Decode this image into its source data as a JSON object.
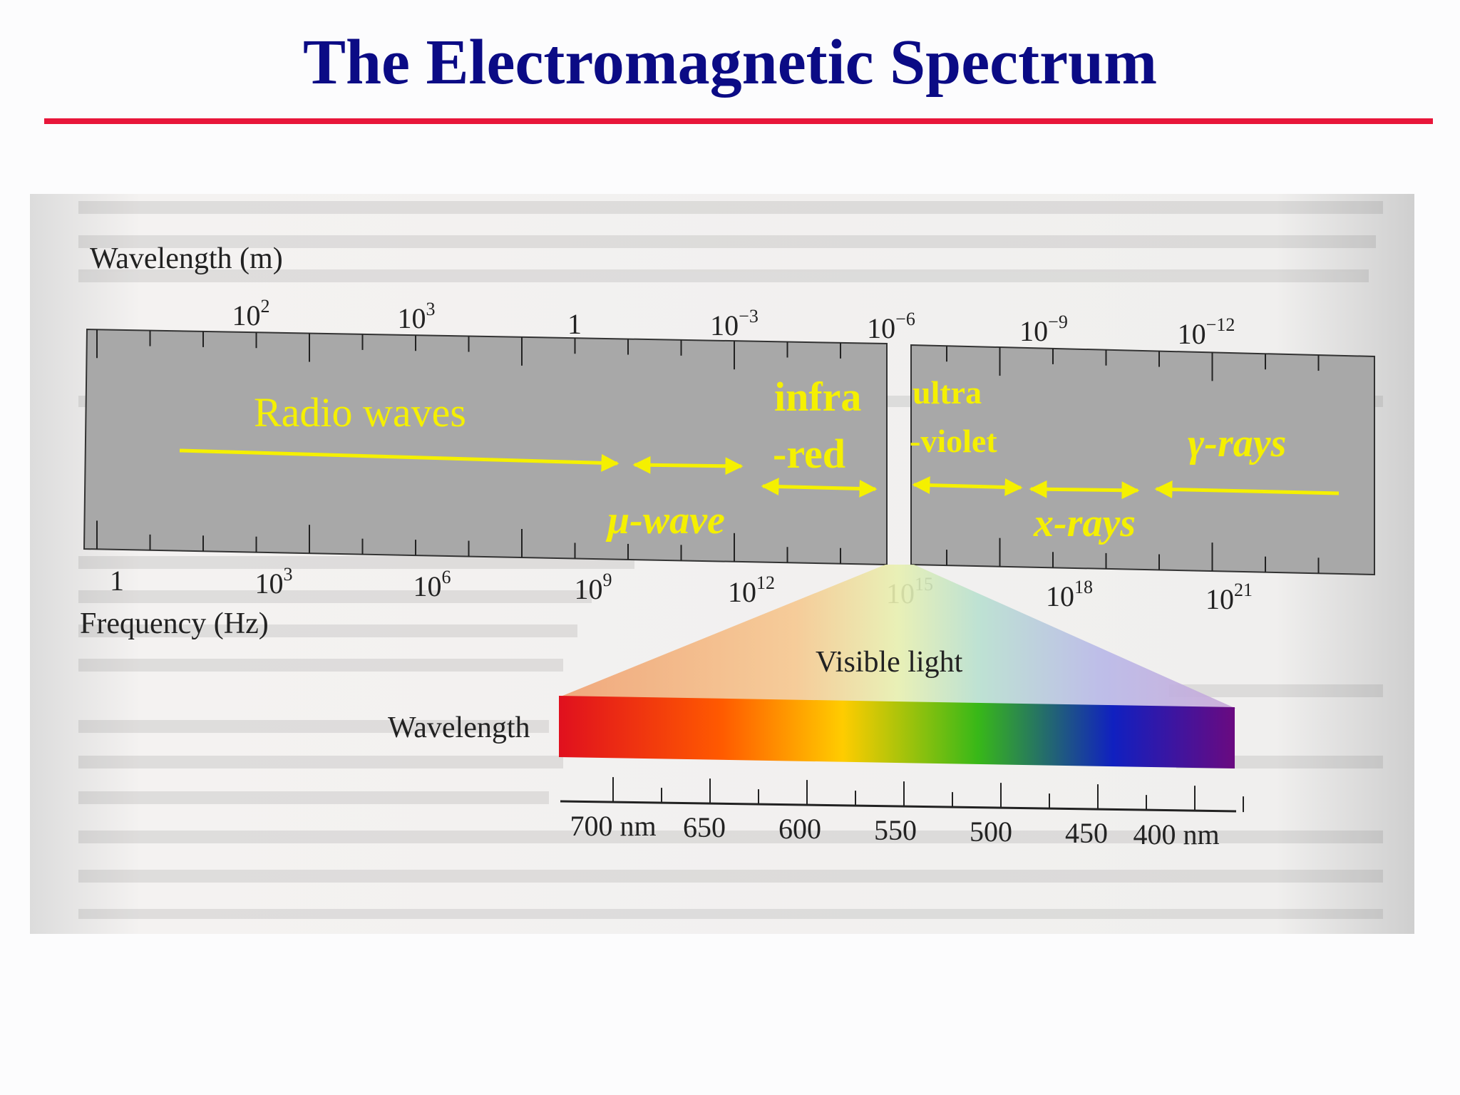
{
  "slide": {
    "title": "The Electromagnetic Spectrum",
    "title_color": "#0b0b85",
    "rule_color": "#e8163a"
  },
  "figure": {
    "wavelength_axis_label": "Wavelength (m)",
    "wavelength_ticks": [
      {
        "base": "10",
        "exp": "2"
      },
      {
        "base": "10",
        "exp": "3"
      },
      {
        "base": "1",
        "exp": ""
      },
      {
        "base": "10",
        "exp": "−3"
      },
      {
        "base": "10",
        "exp": "−6"
      },
      {
        "base": "10",
        "exp": "−9"
      },
      {
        "base": "10",
        "exp": "−12"
      }
    ],
    "frequency_axis_label": "Frequency (Hz)",
    "frequency_ticks": [
      {
        "base": "1",
        "exp": ""
      },
      {
        "base": "10",
        "exp": "3"
      },
      {
        "base": "10",
        "exp": "6"
      },
      {
        "base": "10",
        "exp": "9"
      },
      {
        "base": "10",
        "exp": "12"
      },
      {
        "base": "10",
        "exp": "15"
      },
      {
        "base": "10",
        "exp": "18"
      },
      {
        "base": "10",
        "exp": "21"
      }
    ],
    "bands": {
      "radio": "Radio waves",
      "microwave": "μ-wave",
      "infrared_line1": "infra",
      "infrared_line2": "-red",
      "ultraviolet_line1": "ultra",
      "ultraviolet_line2": "-violet",
      "xrays": "x-rays",
      "gamma": "γ-rays"
    },
    "band_label_color": "#f5f000",
    "visible_light_label": "Visible light",
    "visible_wavelength_label": "Wavelength",
    "visible_ticks": [
      "700 nm",
      "650",
      "600",
      "550",
      "500",
      "450",
      "400 nm"
    ],
    "spectrum_colors": [
      "#e0101e",
      "#ff5a00",
      "#ffcc00",
      "#38b818",
      "#1020c0",
      "#6a0a80"
    ]
  }
}
